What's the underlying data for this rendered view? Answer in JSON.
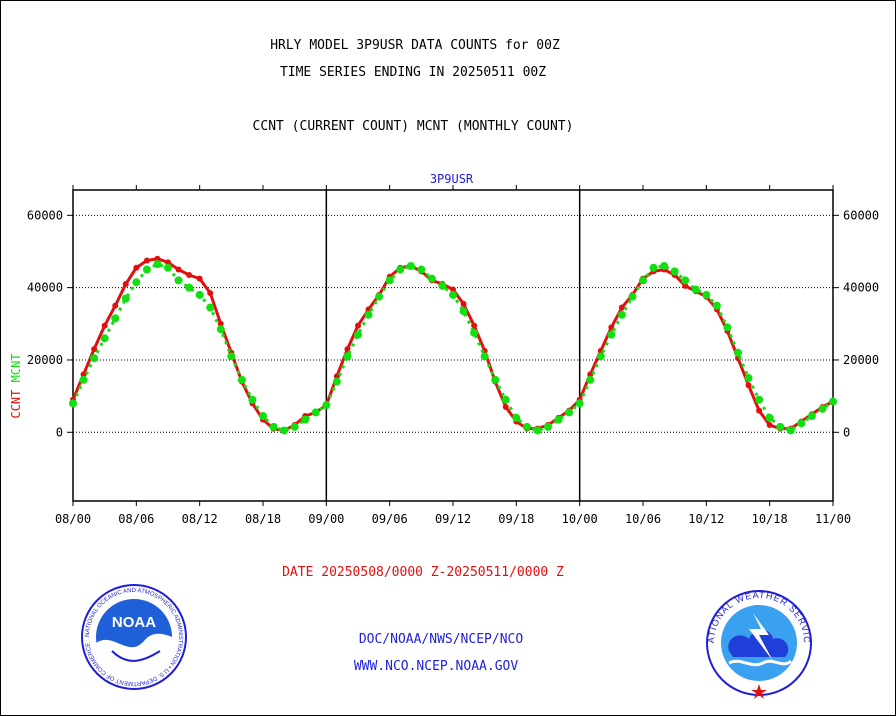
{
  "titles": {
    "line1": "HRLY MODEL 3P9USR DATA COUNTS for 00Z",
    "line2": "TIME SERIES ENDING IN 20250511 00Z",
    "line3": "CCNT (CURRENT COUNT) MCNT (MONTHLY COUNT)",
    "series_label": "3P9USR"
  },
  "footer": {
    "date_range": "DATE 20250508/0000 Z-20250511/0000 Z",
    "credit1": "DOC/NOAA/NWS/NCEP/NCO",
    "credit2": "WWW.NCO.NCEP.NOAA.GOV"
  },
  "logos": {
    "noaa_text": "NOAA",
    "noaa_ring": "NATIONAL OCEANIC AND ATMOSPHERIC ADMINISTRATION • U.S. DEPARTMENT OF COMMERCE",
    "nws_ring": "NATIONAL WEATHER SERVICE"
  },
  "colors": {
    "ccnt": "#e01010",
    "mcnt": "#10e010",
    "blue": "#1f1fd8"
  },
  "chart_data": {
    "type": "line",
    "title": "3P9USR",
    "ylabel_parts": [
      {
        "text": "CCNT",
        "color": "#e01010"
      },
      {
        "text": "MCNT",
        "color": "#10e010"
      }
    ],
    "x_tick_labels": [
      "08/00",
      "08/06",
      "08/12",
      "08/18",
      "09/00",
      "09/06",
      "09/12",
      "09/18",
      "10/00",
      "10/06",
      "10/12",
      "10/18",
      "11/00"
    ],
    "y_tick_labels": [
      "0",
      "20000",
      "40000",
      "60000"
    ],
    "y_ticks": [
      0,
      20000,
      40000,
      60000
    ],
    "ylim": [
      -19000,
      67000
    ],
    "xlim": [
      0,
      72
    ],
    "day_dividers": [
      24,
      48
    ],
    "series": [
      {
        "name": "CCNT",
        "color": "#e01010",
        "x": [
          0,
          1,
          2,
          3,
          4,
          5,
          6,
          7,
          8,
          9,
          10,
          11,
          12,
          13,
          14,
          15,
          16,
          17,
          18,
          19,
          20,
          21,
          22,
          23,
          24,
          25,
          26,
          27,
          28,
          29,
          30,
          31,
          32,
          33,
          34,
          35,
          36,
          37,
          38,
          39,
          40,
          41,
          42,
          43,
          44,
          45,
          46,
          47,
          48,
          49,
          50,
          51,
          52,
          53,
          54,
          55,
          56,
          57,
          58,
          59,
          60,
          61,
          62,
          63,
          64,
          65,
          66,
          67,
          68,
          69,
          70,
          71,
          72
        ],
        "values": [
          9000,
          16000,
          23000,
          29500,
          35000,
          41000,
          45500,
          47500,
          48000,
          47000,
          45000,
          43500,
          42500,
          38500,
          30000,
          22000,
          14000,
          8000,
          3500,
          1000,
          500,
          2000,
          4500,
          5500,
          7500,
          15500,
          23000,
          29500,
          34000,
          38000,
          43000,
          45500,
          46000,
          44500,
          42000,
          41000,
          39500,
          35500,
          29500,
          22500,
          14000,
          7000,
          3000,
          1000,
          1000,
          2000,
          4000,
          6000,
          9000,
          16000,
          22500,
          29000,
          34500,
          38000,
          42500,
          44500,
          45000,
          43500,
          40500,
          39000,
          37500,
          34000,
          28000,
          20500,
          13000,
          6000,
          2000,
          1000,
          1000,
          3000,
          5000,
          7000,
          8500
        ]
      },
      {
        "name": "MCNT",
        "color": "#10e010",
        "x": [
          0,
          1,
          2,
          3,
          4,
          5,
          6,
          7,
          8,
          9,
          10,
          11,
          12,
          13,
          14,
          15,
          16,
          17,
          18,
          19,
          20,
          21,
          22,
          23,
          24,
          25,
          26,
          27,
          28,
          29,
          30,
          31,
          32,
          33,
          34,
          35,
          36,
          37,
          38,
          39,
          40,
          41,
          42,
          43,
          44,
          45,
          46,
          47,
          48,
          49,
          50,
          51,
          52,
          53,
          54,
          55,
          56,
          57,
          58,
          59,
          60,
          61,
          62,
          63,
          64,
          65,
          66,
          67,
          68,
          69,
          70,
          71,
          72
        ],
        "values": [
          8000,
          14500,
          20500,
          26000,
          31500,
          37000,
          41500,
          45000,
          46500,
          45500,
          42000,
          40000,
          38000,
          34500,
          28500,
          21000,
          14500,
          9000,
          4500,
          1500,
          500,
          1500,
          3500,
          5500,
          7500,
          14000,
          21000,
          27000,
          32500,
          37500,
          42000,
          45000,
          46000,
          45000,
          42500,
          40500,
          38000,
          33500,
          27500,
          21000,
          14500,
          9000,
          4000,
          1500,
          500,
          1500,
          3500,
          5500,
          8000,
          14500,
          21000,
          27000,
          32500,
          37500,
          42000,
          45500,
          46000,
          44500,
          42000,
          39500,
          38000,
          35000,
          29000,
          22000,
          15000,
          9000,
          4000,
          1500,
          500,
          2500,
          4500,
          6500,
          8500
        ]
      }
    ]
  }
}
